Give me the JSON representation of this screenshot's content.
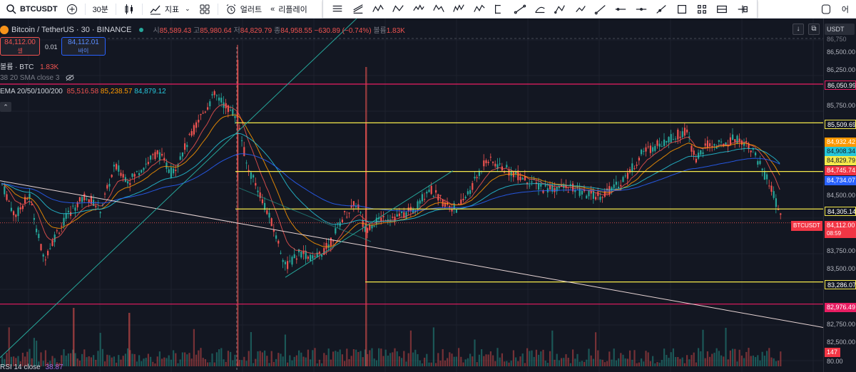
{
  "toolbar": {
    "symbol": "BTCUSDT",
    "interval": "30분",
    "indicators_label": "지표",
    "alert_label": "얼러트",
    "replay_label": "리플레이",
    "right_label": "어"
  },
  "draw_tools": [
    "horizontal-lines-icon",
    "regression-icon",
    "xabcd-pattern-icon",
    "abcd-pattern-icon",
    "head-shoulders-icon",
    "triangle-pattern-icon",
    "three-drives-icon",
    "elliott-wave-icon",
    "fib-retracement-icon",
    "info-line-icon",
    "trend-angle-icon",
    "path-icon",
    "polyline-icon",
    "ray-icon",
    "horizontal-ray-icon",
    "extended-line-icon",
    "arrow-icon",
    "rectangle-icon",
    "bars-pattern-icon",
    "price-range-icon",
    "long-position-icon"
  ],
  "header": {
    "title": "Bitcoin / TetherUS · 30 · BINANCE",
    "open_label": "시",
    "open": "85,589.43",
    "high_label": "고",
    "high": "85,980.64",
    "low_label": "저",
    "low": "84,829.79",
    "close_label": "종",
    "close": "84,958.55",
    "change": "−630.89 (−0.74%)",
    "volume_label": "볼륨",
    "volume": "1.83K"
  },
  "order": {
    "sell_price": "84,112.00",
    "sell_label": "셀",
    "spread": "0.01",
    "buy_price": "84,112.01",
    "buy_label": "바이"
  },
  "volume_legend": {
    "label": "볼륨 · BTC",
    "value": "1.83K"
  },
  "sma_legend": {
    "label": "38 20 SMA close 3"
  },
  "ema_legend": {
    "label": "EMA 20/50/100/200",
    "v1": "85,516.58",
    "v2": "85,238.57",
    "v3": "84,879.12"
  },
  "rsi_legend": {
    "label": "RSI 14 close",
    "value": "38.87"
  },
  "currency": "USDT",
  "price_axis": {
    "ticks": [
      "86,500.00",
      "86,250.00",
      "85,750.00",
      "84,500.00",
      "83,750.00",
      "83,500.00",
      "82,750.00",
      "82,500.00",
      "80.00"
    ],
    "top_partial": "86,750"
  },
  "price_tags": {
    "t86050": "86,050.99",
    "t85509": "85,509.69",
    "t84932": "84,932.42",
    "t84908": "84,908.34",
    "t84829": "84,829.79",
    "t84745": "84,745.74",
    "t84734": "84,734.07",
    "t84305": "84,305.14",
    "t84112": "84,112.00",
    "t83286": "83,286.07",
    "t82976": "82,976.49",
    "vol": "147"
  },
  "current": {
    "symbol_tag": "BTCUSDT",
    "countdown": "08:59"
  },
  "colors": {
    "up": "#26a69a",
    "down": "#ef5350",
    "yellow": "#f5e94b",
    "pink": "#e91e63",
    "ema20": "#ef5350",
    "ema50": "#ff9800",
    "ema100": "#26c6da",
    "ema200": "#2962ff"
  }
}
